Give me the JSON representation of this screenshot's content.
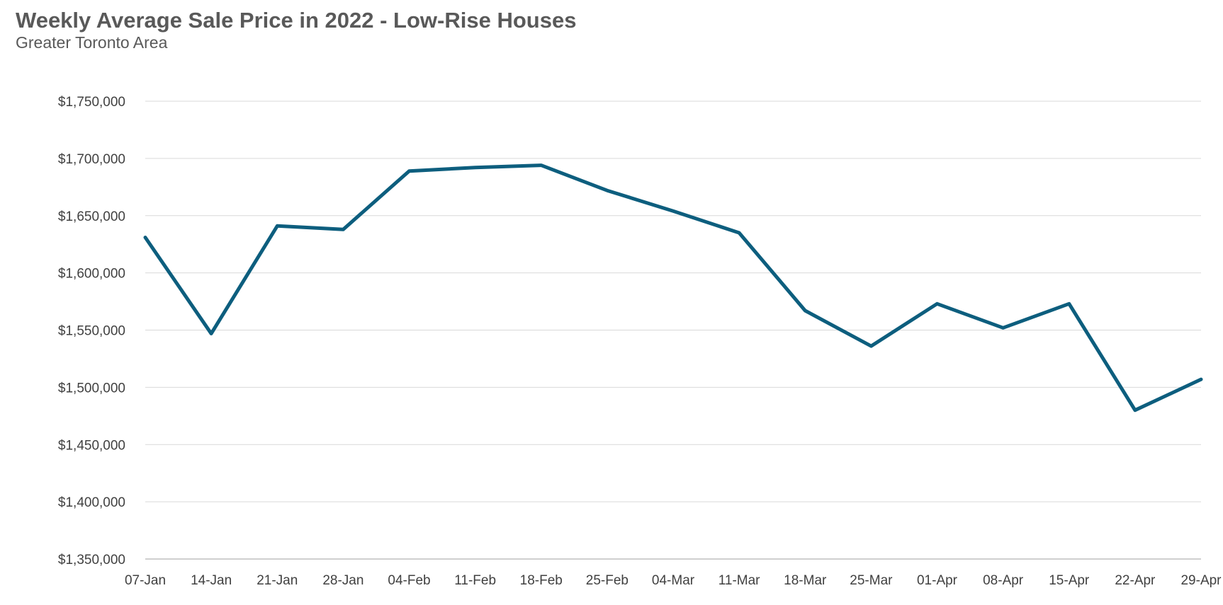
{
  "chart_data": {
    "type": "line",
    "title": "Weekly Average Sale Price in 2022 - Low-Rise Houses",
    "subtitle": "Greater Toronto Area",
    "xlabel": "",
    "ylabel": "",
    "categories": [
      "07-Jan",
      "14-Jan",
      "21-Jan",
      "28-Jan",
      "04-Feb",
      "11-Feb",
      "18-Feb",
      "25-Feb",
      "04-Mar",
      "11-Mar",
      "18-Mar",
      "25-Mar",
      "01-Apr",
      "08-Apr",
      "15-Apr",
      "22-Apr",
      "29-Apr"
    ],
    "series": [
      {
        "values": [
          1631000,
          1547000,
          1641000,
          1638000,
          1689000,
          1692000,
          1694000,
          1672000,
          1654000,
          1635000,
          1567000,
          1536000,
          1573000,
          1552000,
          1573000,
          1480000,
          1507000
        ],
        "color": "#0D5E7E"
      }
    ],
    "ylim": [
      1350000,
      1750000
    ],
    "yticks": [
      1350000,
      1400000,
      1450000,
      1500000,
      1550000,
      1600000,
      1650000,
      1700000,
      1750000
    ],
    "ytick_labels": [
      "$1,350,000",
      "$1,400,000",
      "$1,450,000",
      "$1,500,000",
      "$1,550,000",
      "$1,600,000",
      "$1,650,000",
      "$1,700,000",
      "$1,750,000"
    ],
    "grid": true,
    "legend": "none",
    "colors": {
      "gridline": "#D9D9D9",
      "axis": "#BFBFBF"
    }
  }
}
